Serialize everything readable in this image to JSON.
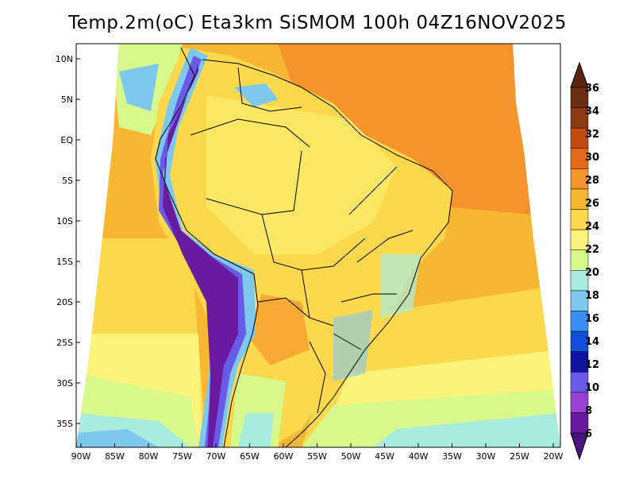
{
  "title": "Temp.2m(oC) Eta3km SiSMOM 100h 04Z16NOV2025",
  "map": {
    "lat_ticks": [
      "10N",
      "5N",
      "EQ",
      "5S",
      "10S",
      "15S",
      "20S",
      "25S",
      "30S",
      "35S"
    ],
    "lon_ticks": [
      "90W",
      "85W",
      "80W",
      "75W",
      "70W",
      "65W",
      "60W",
      "55W",
      "50W",
      "45W",
      "40W",
      "35W",
      "30W",
      "25W",
      "20W"
    ],
    "lon_range": [
      -90,
      -20
    ],
    "lat_range": [
      -38,
      12
    ]
  },
  "colorbar": {
    "labels": [
      "36",
      "34",
      "32",
      "30",
      "28",
      "26",
      "24",
      "22",
      "20",
      "18",
      "16",
      "14",
      "12",
      "10",
      "8",
      "6"
    ],
    "colors": [
      "#6b2c12",
      "#8c3a12",
      "#c04a12",
      "#e06a18",
      "#f5932c",
      "#f8b733",
      "#fcd94c",
      "#fcf37a",
      "#d6f88c",
      "#a8ecdf",
      "#7ec8ee",
      "#3c8df0",
      "#1050d8",
      "#0f14a0",
      "#6a5ae8",
      "#9b3fd4",
      "#6a1a9e"
    ],
    "top_color": "#5a2410",
    "bottom_color": "#4a1480"
  }
}
